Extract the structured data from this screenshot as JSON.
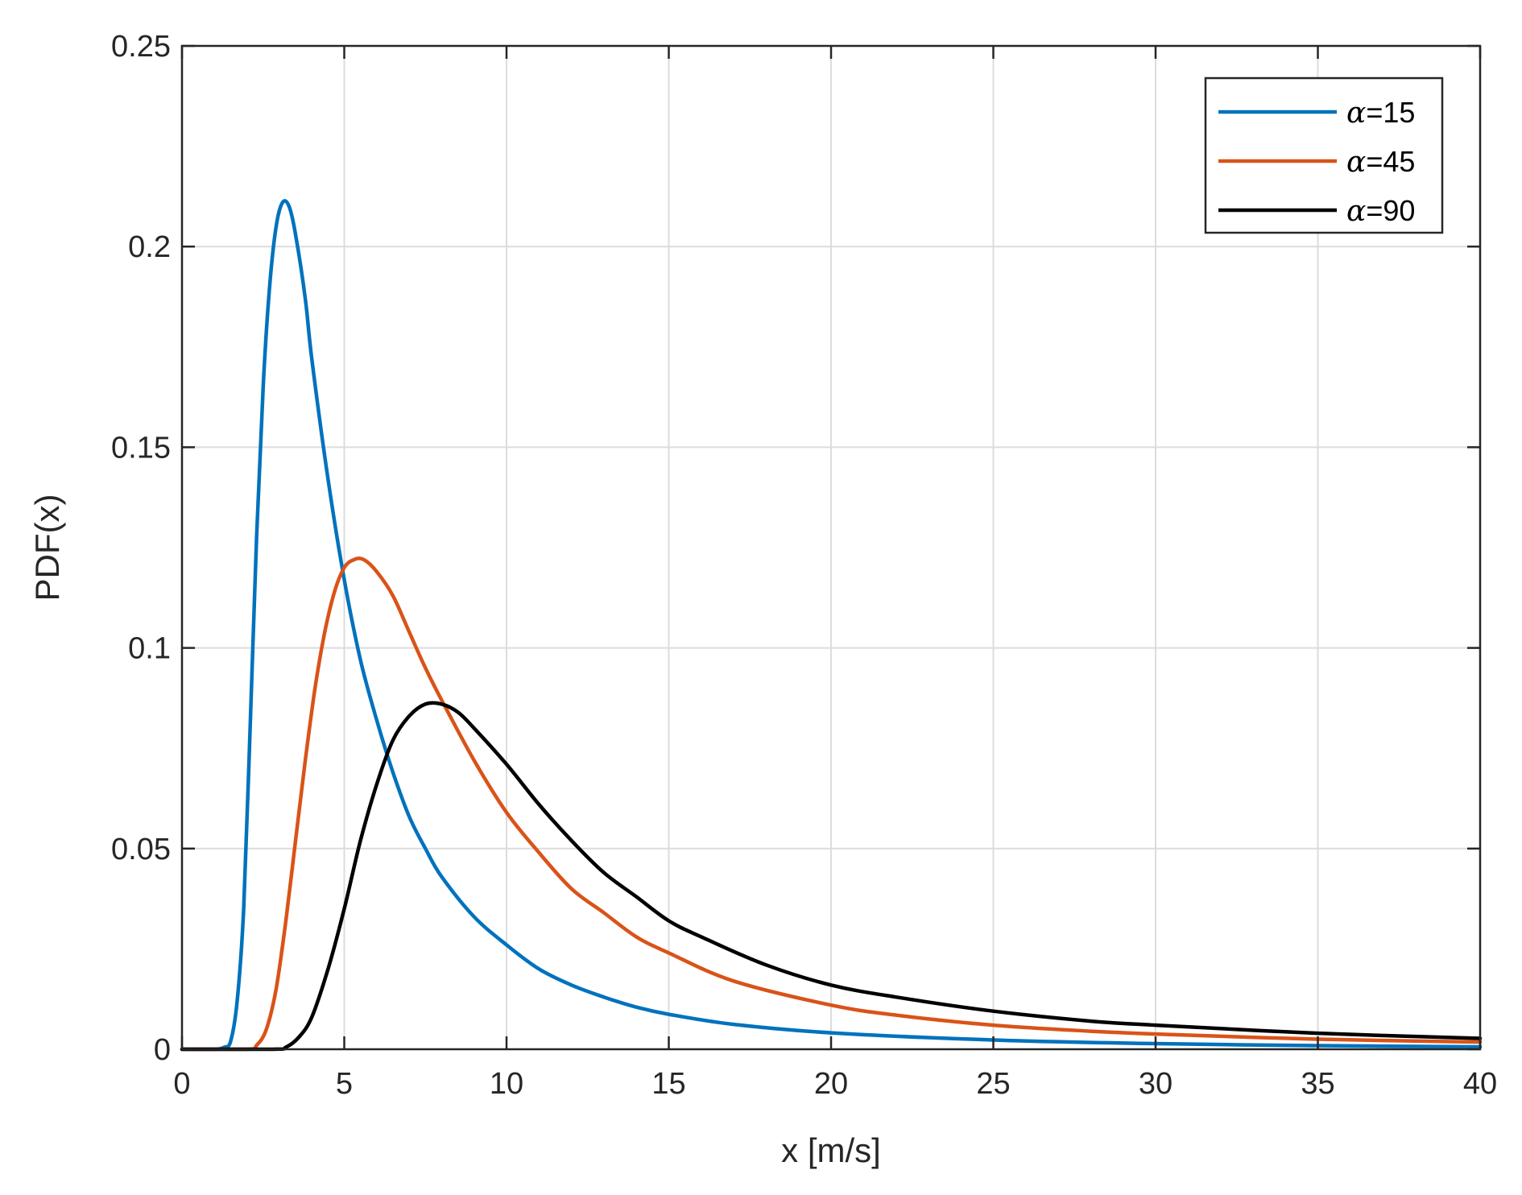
{
  "chart_data": {
    "type": "line",
    "title": "",
    "xlabel": "x [m/s]",
    "ylabel": "PDF(x)",
    "xlim": [
      0,
      40
    ],
    "ylim": [
      0,
      0.25
    ],
    "x_ticks": [
      0,
      5,
      10,
      15,
      20,
      25,
      30,
      35,
      40
    ],
    "x_tick_labels": [
      "0",
      "5",
      "10",
      "15",
      "20",
      "25",
      "30",
      "35",
      "40"
    ],
    "y_ticks": [
      0,
      0.05,
      0.1,
      0.15,
      0.2,
      0.25
    ],
    "y_tick_labels": [
      "0",
      "0.05",
      "0.1",
      "0.15",
      "0.2",
      "0.25"
    ],
    "grid": true,
    "legend_position": "top-right",
    "series": [
      {
        "name": "15",
        "name_prefix": "α",
        "name_sep": "=",
        "color": "#0072BD",
        "points": [
          [
            0,
            0
          ],
          [
            1,
            0
          ],
          [
            1.3,
            0.0005
          ],
          [
            1.5,
            0.002
          ],
          [
            1.7,
            0.012
          ],
          [
            1.9,
            0.035
          ],
          [
            2.1,
            0.08
          ],
          [
            2.3,
            0.128
          ],
          [
            2.5,
            0.165
          ],
          [
            2.7,
            0.19
          ],
          [
            2.9,
            0.205
          ],
          [
            3.1,
            0.211
          ],
          [
            3.3,
            0.21
          ],
          [
            3.5,
            0.203
          ],
          [
            3.8,
            0.187
          ],
          [
            4,
            0.172
          ],
          [
            4.5,
            0.142
          ],
          [
            5,
            0.117
          ],
          [
            5.5,
            0.097
          ],
          [
            6,
            0.082
          ],
          [
            6.5,
            0.069
          ],
          [
            7,
            0.058
          ],
          [
            7.5,
            0.05
          ],
          [
            8,
            0.043
          ],
          [
            9,
            0.033
          ],
          [
            10,
            0.026
          ],
          [
            11,
            0.02
          ],
          [
            12,
            0.016
          ],
          [
            13,
            0.013
          ],
          [
            14,
            0.0105
          ],
          [
            15,
            0.0087
          ],
          [
            17,
            0.0062
          ],
          [
            20,
            0.0041
          ],
          [
            25,
            0.0023
          ],
          [
            30,
            0.0014
          ],
          [
            35,
            0.0009
          ],
          [
            40,
            0.0006
          ]
        ]
      },
      {
        "name": "45",
        "name_prefix": "α",
        "name_sep": "=",
        "color": "#D95319",
        "points": [
          [
            0,
            0
          ],
          [
            2,
            0
          ],
          [
            2.3,
            0.001
          ],
          [
            2.6,
            0.005
          ],
          [
            2.9,
            0.015
          ],
          [
            3.2,
            0.032
          ],
          [
            3.5,
            0.052
          ],
          [
            3.8,
            0.072
          ],
          [
            4.1,
            0.09
          ],
          [
            4.4,
            0.104
          ],
          [
            4.7,
            0.114
          ],
          [
            5,
            0.12
          ],
          [
            5.3,
            0.122
          ],
          [
            5.6,
            0.122
          ],
          [
            6,
            0.119
          ],
          [
            6.5,
            0.113
          ],
          [
            7,
            0.104
          ],
          [
            7.5,
            0.095
          ],
          [
            8,
            0.087
          ],
          [
            9,
            0.072
          ],
          [
            10,
            0.059
          ],
          [
            11,
            0.049
          ],
          [
            12,
            0.04
          ],
          [
            13,
            0.034
          ],
          [
            14,
            0.028
          ],
          [
            15,
            0.024
          ],
          [
            17,
            0.017
          ],
          [
            20,
            0.011
          ],
          [
            22,
            0.0085
          ],
          [
            25,
            0.006
          ],
          [
            28,
            0.0045
          ],
          [
            30,
            0.0038
          ],
          [
            35,
            0.0025
          ],
          [
            40,
            0.0018
          ]
        ]
      },
      {
        "name": "90",
        "name_prefix": "α",
        "name_sep": "=",
        "color": "#000000",
        "points": [
          [
            0,
            0
          ],
          [
            2.8,
            0
          ],
          [
            3.2,
            0.0005
          ],
          [
            3.6,
            0.003
          ],
          [
            4,
            0.008
          ],
          [
            4.5,
            0.02
          ],
          [
            5,
            0.035
          ],
          [
            5.5,
            0.052
          ],
          [
            6,
            0.066
          ],
          [
            6.5,
            0.077
          ],
          [
            7,
            0.083
          ],
          [
            7.5,
            0.086
          ],
          [
            8,
            0.086
          ],
          [
            8.5,
            0.084
          ],
          [
            9,
            0.08
          ],
          [
            10,
            0.071
          ],
          [
            11,
            0.061
          ],
          [
            12,
            0.052
          ],
          [
            13,
            0.044
          ],
          [
            14,
            0.038
          ],
          [
            15,
            0.032
          ],
          [
            16,
            0.028
          ],
          [
            18,
            0.021
          ],
          [
            20,
            0.016
          ],
          [
            22,
            0.013
          ],
          [
            25,
            0.0095
          ],
          [
            28,
            0.007
          ],
          [
            30,
            0.006
          ],
          [
            35,
            0.004
          ],
          [
            40,
            0.0027
          ]
        ]
      }
    ]
  }
}
